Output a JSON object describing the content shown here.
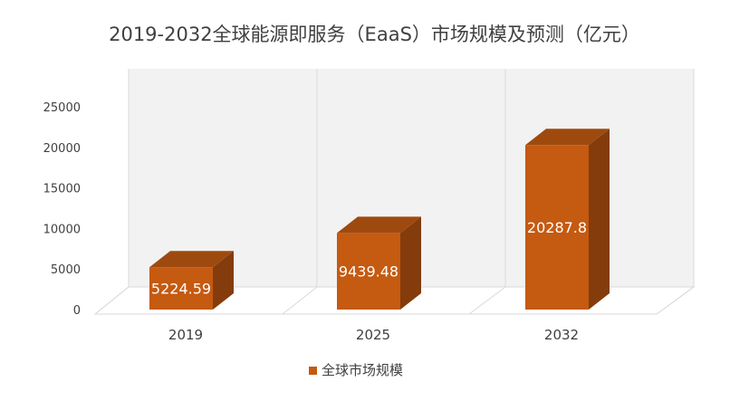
{
  "chart_data": {
    "type": "bar",
    "title": "2019-2032全球能源即服务（EaaS）市场规模及预测（亿元）",
    "categories": [
      "2019",
      "2025",
      "2032"
    ],
    "series": [
      {
        "name": "全球市场规模",
        "values": [
          5224.59,
          9439.48,
          20287.8
        ],
        "labels": [
          "5224.59",
          "9439.48",
          "20287.8"
        ]
      }
    ],
    "ylim": [
      0,
      25000
    ],
    "yticks": [
      "0",
      "5000",
      "10000",
      "15000",
      "20000",
      "25000"
    ],
    "grid": false,
    "legend": "bottom",
    "colors": {
      "bar_front": "#C55A11",
      "bar_side": "#843C0C",
      "bar_top": "#9E4A0F",
      "wall": "#F2F2F2",
      "wall_line": "#D9D9D9"
    }
  }
}
